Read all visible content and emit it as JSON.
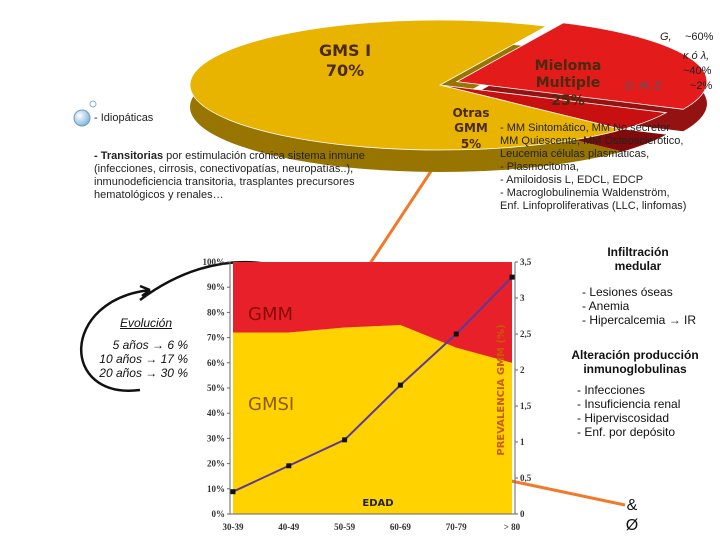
{
  "pie": {
    "categories": [
      "GMS I",
      "Mieloma Multiple",
      "Otras GMM"
    ],
    "values": [
      70,
      25,
      5
    ],
    "value_labels": [
      "70%",
      "25%",
      "5%"
    ],
    "colors": [
      "#e8b400",
      "#e41b1b",
      "#c81010"
    ]
  },
  "light_chains": [
    "G,",
    "~60%",
    "κ ó λ,",
    "~40%",
    "D, M, E",
    "~2%"
  ],
  "idiopaticas": "- Idiopáticas",
  "transitorias_label": "- Transitorias",
  "transitorias_text": "por estimulación crónica sistema inmune (infecciones, cirrosis, conectivopatías, neuropatías..), inmunodeficiencia transitoria, trasplantes precursores hematológicos y renales…",
  "mieloma_list": [
    "- MM Sintomático, MM No secretor",
    "MM Quiescente, MM Osteosclerótico,",
    "Leucemia células plasmáticas,",
    "- Plasmocitoma,",
    "- Amiloidosis L, EDCL, EDCP",
    "- Macroglobulinemia Waldenström,",
    "Enf. Linfoproliferativas (LLC, linfomas)"
  ],
  "infiltracion": {
    "title": "Infiltración medular",
    "items": [
      "- Lesiones óseas",
      "- Anemia",
      "- Hipercalcemia → IR"
    ]
  },
  "alteracion": {
    "title": "Alteración producción inmunoglobulinas",
    "items": [
      "- Infecciones",
      "- Insuficiencia renal",
      "- Hiperviscosidad",
      "- Enf. por depósito"
    ]
  },
  "symbols": "& Ø",
  "evolucion": {
    "title": "Evolución",
    "items": [
      "5 años → 6 %",
      "10 años → 17 %",
      "20 años → 30 %"
    ]
  },
  "chart_data": {
    "type": "stacked_area_line",
    "x_label": "EDAD",
    "y2_label": "PREVALENCIA GMM (%)",
    "categories": [
      "30-39",
      "40-49",
      "50-59",
      "60-69",
      "70-79",
      "> 80"
    ],
    "series": [
      {
        "name": "GMSI",
        "color": "#ffd200",
        "values": [
          72,
          72,
          74,
          75,
          66,
          60
        ]
      },
      {
        "name": "GMM",
        "color": "#e8202a",
        "values": [
          28,
          28,
          26,
          25,
          34,
          40
        ]
      },
      {
        "color": "#5b3a9e",
        "axis": "y2",
        "values": [
          0.31,
          0.67,
          1.03,
          1.79,
          2.5,
          3.29
        ]
      }
    ],
    "ylim": [
      0,
      100
    ],
    "yticks": [
      {
        "value": 0,
        "label": "0%"
      },
      {
        "value": 10,
        "label": "10%"
      },
      {
        "value": 20,
        "label": "20%"
      },
      {
        "value": 30,
        "label": "30%"
      },
      {
        "value": 40,
        "label": "40%"
      },
      {
        "value": 50,
        "label": "50%"
      },
      {
        "value": 60,
        "label": "60%"
      },
      {
        "value": 70,
        "label": "70%"
      },
      {
        "value": 80,
        "label": "80%"
      },
      {
        "value": 90,
        "label": "90%"
      },
      {
        "value": 100,
        "label": "100%"
      }
    ],
    "y2lim": [
      0,
      3.5
    ],
    "y2ticks": [
      0,
      {
        "value": 0.5,
        "label": "0,5"
      },
      1,
      {
        "value": 1.5,
        "label": "1,5"
      },
      2,
      {
        "value": 2.5,
        "label": "2,5"
      },
      3,
      {
        "value": 3.5,
        "label": "3,5"
      }
    ]
  }
}
